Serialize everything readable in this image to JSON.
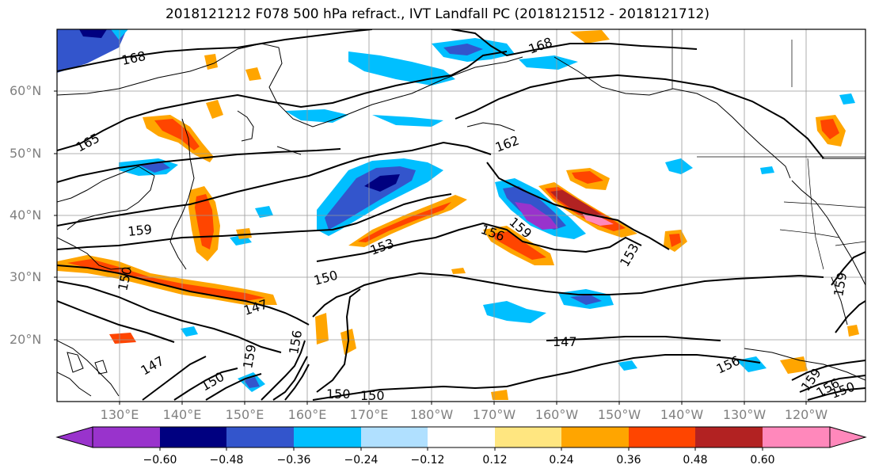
{
  "title": "2018121212 F078 500 hPa refract., IVT Landfall PC (2018121512 - 2018121712)",
  "lat_labels": [
    "60°N",
    "50°N",
    "40°N",
    "30°N",
    "20°N"
  ],
  "lon_labels": [
    "130°E",
    "140°E",
    "150°E",
    "160°E",
    "170°E",
    "180°W",
    "170°W",
    "160°W",
    "150°W",
    "140°W",
    "130°W",
    "120°W"
  ],
  "contour_labels": [
    "168",
    "168",
    "165",
    "162",
    "159",
    "159",
    "156",
    "153",
    "153",
    "150",
    "147",
    "147",
    "147",
    "150",
    "156",
    "159",
    "156",
    "150",
    "150",
    "150",
    "159",
    "156",
    "150",
    "159"
  ],
  "colorbar": {
    "ticks": [
      "−0.60",
      "−0.48",
      "−0.36",
      "−0.24",
      "−0.12",
      "0.12",
      "0.24",
      "0.36",
      "0.48",
      "0.60"
    ],
    "colors": [
      "#9933cc",
      "#000080",
      "#3355cc",
      "#00bfff",
      "#b0e0ff",
      "#ffffff",
      "#ffe680",
      "#ffa500",
      "#ff4500",
      "#b22222",
      "#ff88bb"
    ]
  }
}
